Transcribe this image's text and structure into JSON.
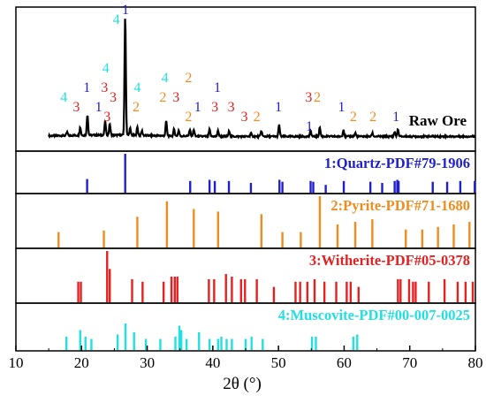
{
  "chart_data": {
    "type": "line",
    "xlabel": "2θ (°)",
    "xlim": [
      10,
      80
    ],
    "xticks": [
      10,
      20,
      30,
      40,
      50,
      60,
      70,
      80
    ],
    "colors": {
      "raw": "#000000",
      "quartz": "#1f1fcc",
      "pyrite": "#f08c1e",
      "witherite": "#e62020",
      "muscovite": "#22e0e0"
    },
    "raw_ore": {
      "label": "Raw Ore",
      "baseline": 1.0,
      "peaks": [
        {
          "x": 17.8,
          "h": 1.5
        },
        {
          "x": 19.8,
          "h": 3.5
        },
        {
          "x": 20.9,
          "h": 9
        },
        {
          "x": 23.6,
          "h": 6
        },
        {
          "x": 24.3,
          "h": 5
        },
        {
          "x": 26.65,
          "h": 52
        },
        {
          "x": 27.4,
          "h": 3
        },
        {
          "x": 28.5,
          "h": 3.5
        },
        {
          "x": 29.2,
          "h": 2
        },
        {
          "x": 32.9,
          "h": 6.5
        },
        {
          "x": 34.1,
          "h": 3
        },
        {
          "x": 34.8,
          "h": 2.5
        },
        {
          "x": 36.5,
          "h": 3
        },
        {
          "x": 37.1,
          "h": 3
        },
        {
          "x": 39.5,
          "h": 3
        },
        {
          "x": 40.8,
          "h": 2.5
        },
        {
          "x": 42.5,
          "h": 2.5
        },
        {
          "x": 45.8,
          "h": 1.5
        },
        {
          "x": 47.4,
          "h": 2.5
        },
        {
          "x": 50.1,
          "h": 5
        },
        {
          "x": 54.9,
          "h": 2.5
        },
        {
          "x": 56.3,
          "h": 4
        },
        {
          "x": 59.9,
          "h": 3
        },
        {
          "x": 61.7,
          "h": 1.5
        },
        {
          "x": 64.3,
          "h": 1.5
        },
        {
          "x": 67.7,
          "h": 2
        },
        {
          "x": 68.2,
          "h": 3
        }
      ],
      "annotations": [
        {
          "x": 17.3,
          "label": "4",
          "phase": "muscovite",
          "level": 3
        },
        {
          "x": 19.2,
          "label": "3",
          "phase": "witherite",
          "level": 2
        },
        {
          "x": 20.8,
          "label": "1",
          "phase": "quartz",
          "level": 4
        },
        {
          "x": 22.6,
          "label": "1",
          "phase": "quartz",
          "level": 2
        },
        {
          "x": 23.7,
          "label": "4",
          "phase": "muscovite",
          "level": 6
        },
        {
          "x": 23.5,
          "label": "3",
          "phase": "witherite",
          "level": 4
        },
        {
          "x": 24.8,
          "label": "3",
          "phase": "witherite",
          "level": 3
        },
        {
          "x": 23.9,
          "label": "3",
          "phase": "witherite",
          "level": 1
        },
        {
          "x": 25.3,
          "label": "4",
          "phase": "muscovite",
          "level": 11
        },
        {
          "x": 26.7,
          "label": "1",
          "phase": "quartz",
          "level": 12
        },
        {
          "x": 28.3,
          "label": "2",
          "phase": "pyrite",
          "level": 2
        },
        {
          "x": 28.5,
          "label": "4",
          "phase": "muscovite",
          "level": 4
        },
        {
          "x": 32.4,
          "label": "2",
          "phase": "pyrite",
          "level": 3
        },
        {
          "x": 32.7,
          "label": "4",
          "phase": "muscovite",
          "level": 5
        },
        {
          "x": 34.4,
          "label": "3",
          "phase": "witherite",
          "level": 3
        },
        {
          "x": 36.3,
          "label": "2",
          "phase": "pyrite",
          "level": 5
        },
        {
          "x": 36.3,
          "label": "2",
          "phase": "pyrite",
          "level": 1
        },
        {
          "x": 37.7,
          "label": "1",
          "phase": "quartz",
          "level": 2
        },
        {
          "x": 40.3,
          "label": "3",
          "phase": "witherite",
          "level": 2
        },
        {
          "x": 40.7,
          "label": "1",
          "phase": "quartz",
          "level": 4
        },
        {
          "x": 42.8,
          "label": "3",
          "phase": "witherite",
          "level": 2
        },
        {
          "x": 44.8,
          "label": "3",
          "phase": "witherite",
          "level": 1
        },
        {
          "x": 46.7,
          "label": "2",
          "phase": "pyrite",
          "level": 1
        },
        {
          "x": 50.0,
          "label": "1",
          "phase": "quartz",
          "level": 2
        },
        {
          "x": 54.7,
          "label": "1",
          "phase": "quartz",
          "level": 0
        },
        {
          "x": 54.6,
          "label": "3",
          "phase": "witherite",
          "level": 3
        },
        {
          "x": 55.9,
          "label": "2",
          "phase": "pyrite",
          "level": 3
        },
        {
          "x": 59.6,
          "label": "1",
          "phase": "quartz",
          "level": 2
        },
        {
          "x": 61.4,
          "label": "2",
          "phase": "pyrite",
          "level": 1
        },
        {
          "x": 64.4,
          "label": "2",
          "phase": "pyrite",
          "level": 1
        },
        {
          "x": 67.9,
          "label": "1",
          "phase": "quartz",
          "level": 1
        }
      ]
    },
    "references": [
      {
        "label": "1:Quartz-PDF#79-1906",
        "phase": "quartz",
        "lines": [
          {
            "x": 20.85,
            "h": 0.35
          },
          {
            "x": 26.65,
            "h": 1.0
          },
          {
            "x": 36.55,
            "h": 0.3
          },
          {
            "x": 39.5,
            "h": 0.33
          },
          {
            "x": 40.3,
            "h": 0.3
          },
          {
            "x": 42.45,
            "h": 0.3
          },
          {
            "x": 45.8,
            "h": 0.25
          },
          {
            "x": 50.15,
            "h": 0.33
          },
          {
            "x": 50.6,
            "h": 0.28
          },
          {
            "x": 54.9,
            "h": 0.3
          },
          {
            "x": 55.3,
            "h": 0.28
          },
          {
            "x": 57.2,
            "h": 0.2
          },
          {
            "x": 59.95,
            "h": 0.3
          },
          {
            "x": 64.0,
            "h": 0.28
          },
          {
            "x": 65.8,
            "h": 0.25
          },
          {
            "x": 67.7,
            "h": 0.3
          },
          {
            "x": 68.1,
            "h": 0.33
          },
          {
            "x": 68.3,
            "h": 0.3
          },
          {
            "x": 73.5,
            "h": 0.28
          },
          {
            "x": 75.7,
            "h": 0.28
          },
          {
            "x": 77.7,
            "h": 0.3
          },
          {
            "x": 79.9,
            "h": 0.3
          }
        ]
      },
      {
        "label": "2:Pyrite-PDF#71-1680",
        "phase": "pyrite",
        "lines": [
          {
            "x": 16.5,
            "h": 0.3
          },
          {
            "x": 23.4,
            "h": 0.33
          },
          {
            "x": 28.5,
            "h": 0.6
          },
          {
            "x": 33.0,
            "h": 0.9
          },
          {
            "x": 37.1,
            "h": 0.75
          },
          {
            "x": 40.8,
            "h": 0.7
          },
          {
            "x": 47.4,
            "h": 0.65
          },
          {
            "x": 50.6,
            "h": 0.3
          },
          {
            "x": 53.4,
            "h": 0.3
          },
          {
            "x": 56.3,
            "h": 1.0
          },
          {
            "x": 59.0,
            "h": 0.45
          },
          {
            "x": 61.7,
            "h": 0.5
          },
          {
            "x": 64.3,
            "h": 0.55
          },
          {
            "x": 69.4,
            "h": 0.35
          },
          {
            "x": 71.9,
            "h": 0.35
          },
          {
            "x": 74.3,
            "h": 0.4
          },
          {
            "x": 76.7,
            "h": 0.45
          },
          {
            "x": 79.1,
            "h": 0.5
          }
        ]
      },
      {
        "label": "3:Witherite-PDF#05-0378",
        "phase": "witherite",
        "lines": [
          {
            "x": 19.5,
            "h": 0.4
          },
          {
            "x": 19.9,
            "h": 0.4
          },
          {
            "x": 23.9,
            "h": 1.0
          },
          {
            "x": 24.3,
            "h": 0.65
          },
          {
            "x": 27.7,
            "h": 0.45
          },
          {
            "x": 29.3,
            "h": 0.4
          },
          {
            "x": 32.5,
            "h": 0.4
          },
          {
            "x": 33.7,
            "h": 0.5
          },
          {
            "x": 34.2,
            "h": 0.5
          },
          {
            "x": 34.6,
            "h": 0.5
          },
          {
            "x": 39.4,
            "h": 0.45
          },
          {
            "x": 40.2,
            "h": 0.45
          },
          {
            "x": 42.0,
            "h": 0.55
          },
          {
            "x": 42.9,
            "h": 0.5
          },
          {
            "x": 44.3,
            "h": 0.45
          },
          {
            "x": 44.9,
            "h": 0.45
          },
          {
            "x": 46.7,
            "h": 0.45
          },
          {
            "x": 49.3,
            "h": 0.3
          },
          {
            "x": 52.6,
            "h": 0.4
          },
          {
            "x": 53.3,
            "h": 0.4
          },
          {
            "x": 54.4,
            "h": 0.4
          },
          {
            "x": 55.5,
            "h": 0.45
          },
          {
            "x": 57.0,
            "h": 0.4
          },
          {
            "x": 58.8,
            "h": 0.4
          },
          {
            "x": 60.4,
            "h": 0.4
          },
          {
            "x": 61.0,
            "h": 0.4
          },
          {
            "x": 62.2,
            "h": 0.3
          },
          {
            "x": 68.2,
            "h": 0.45
          },
          {
            "x": 68.6,
            "h": 0.45
          },
          {
            "x": 69.9,
            "h": 0.45
          },
          {
            "x": 70.5,
            "h": 0.4
          },
          {
            "x": 70.9,
            "h": 0.4
          },
          {
            "x": 72.9,
            "h": 0.4
          },
          {
            "x": 75.3,
            "h": 0.45
          },
          {
            "x": 77.3,
            "h": 0.4
          },
          {
            "x": 78.5,
            "h": 0.4
          },
          {
            "x": 79.6,
            "h": 0.4
          }
        ]
      },
      {
        "label": "4:Muscovite-PDF#00-007-0025",
        "phase": "muscovite",
        "lines": [
          {
            "x": 17.7,
            "h": 0.3
          },
          {
            "x": 19.8,
            "h": 0.45
          },
          {
            "x": 20.6,
            "h": 0.3
          },
          {
            "x": 21.5,
            "h": 0.25
          },
          {
            "x": 25.5,
            "h": 0.35
          },
          {
            "x": 26.7,
            "h": 0.6
          },
          {
            "x": 28.0,
            "h": 0.4
          },
          {
            "x": 29.8,
            "h": 0.25
          },
          {
            "x": 32.0,
            "h": 0.25
          },
          {
            "x": 34.3,
            "h": 0.3
          },
          {
            "x": 34.9,
            "h": 0.55
          },
          {
            "x": 35.2,
            "h": 0.45
          },
          {
            "x": 36.0,
            "h": 0.25
          },
          {
            "x": 37.9,
            "h": 0.4
          },
          {
            "x": 39.5,
            "h": 0.25
          },
          {
            "x": 40.8,
            "h": 0.25
          },
          {
            "x": 41.3,
            "h": 0.3
          },
          {
            "x": 42.1,
            "h": 0.25
          },
          {
            "x": 42.9,
            "h": 0.25
          },
          {
            "x": 45.0,
            "h": 0.25
          },
          {
            "x": 45.9,
            "h": 0.3
          },
          {
            "x": 47.6,
            "h": 0.25
          },
          {
            "x": 55.1,
            "h": 0.3
          },
          {
            "x": 55.7,
            "h": 0.3
          },
          {
            "x": 61.4,
            "h": 0.3
          },
          {
            "x": 62.0,
            "h": 0.35
          }
        ]
      }
    ]
  }
}
